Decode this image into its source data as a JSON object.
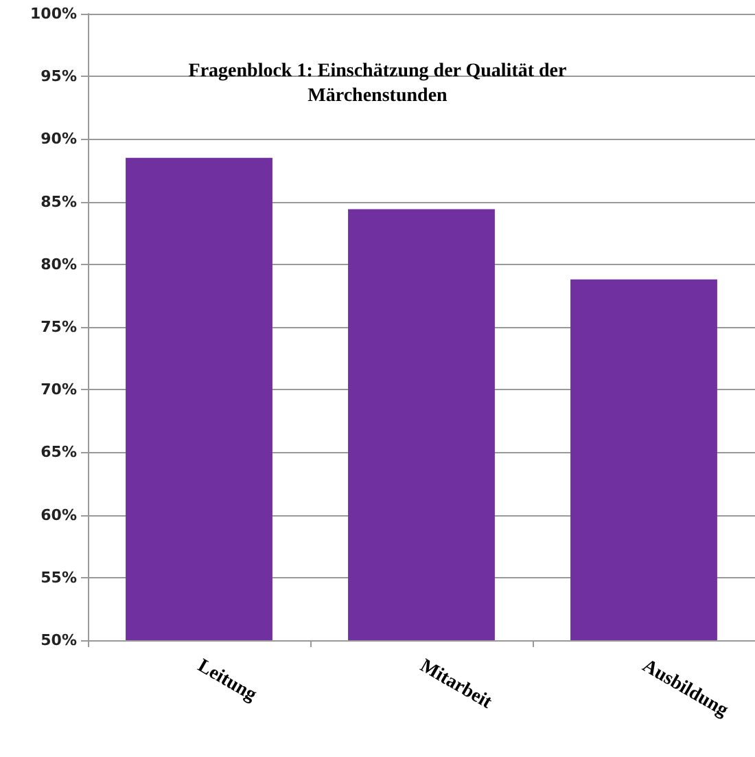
{
  "chart_data": {
    "type": "bar",
    "title": "Fragenblock 1: Einschätzung der Qualität der\nMärchenstunden",
    "categories": [
      "Leitung",
      "Mitarbeit",
      "Ausbildung"
    ],
    "values": [
      88.5,
      84.4,
      78.8
    ],
    "color": "#7030a0",
    "ylim": [
      50,
      100
    ],
    "yticks": [
      {
        "value": 50,
        "label": "50%"
      },
      {
        "value": 55,
        "label": "55%"
      },
      {
        "value": 60,
        "label": "60%"
      },
      {
        "value": 65,
        "label": "65%"
      },
      {
        "value": 70,
        "label": "70%"
      },
      {
        "value": 75,
        "label": "75%"
      },
      {
        "value": 80,
        "label": "80%"
      },
      {
        "value": 85,
        "label": "85%"
      },
      {
        "value": 90,
        "label": "90%"
      },
      {
        "value": 95,
        "label": "95%"
      },
      {
        "value": 100,
        "label": "100%"
      }
    ],
    "grid": "y"
  }
}
